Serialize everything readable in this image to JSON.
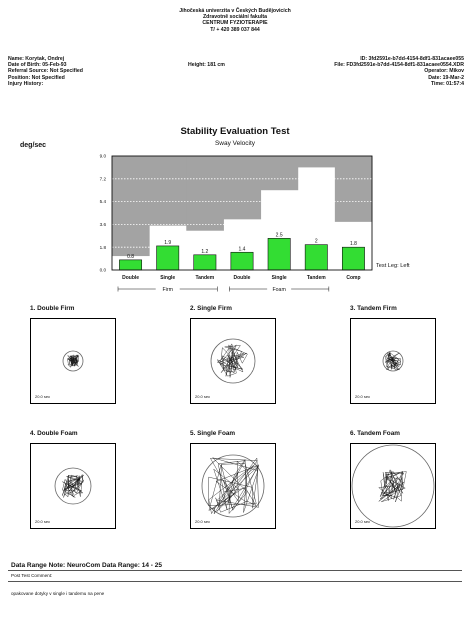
{
  "header": {
    "line1": "Jihočeská univerzita v Českých Budějovicích",
    "line2": "Zdravotně sociální fakulta",
    "line3": "CENTRUM FYZIOTERAPIE",
    "line4": "T/ + 420 389 037 844"
  },
  "patient": {
    "name": "Name: Korytak, Ondrej",
    "dob": "Date of Birth: 05-Feb-93",
    "referral": "Referral Source: Not Specified",
    "position": "Position: Not Specified",
    "injury": "Injury History:",
    "height": "Height: 181 cm",
    "id": "ID: 3fd2591e-b7dd-4154-8df1-831acaee055",
    "file": "File: FD3fd2591e-b7dd-4154-8df1-831acaee0554.XDR",
    "operator": "Operator: Mikov",
    "date": "Date: 19-Mar-2",
    "time": "Time: 01:57:4"
  },
  "report": {
    "title": "Stability Evaluation Test",
    "unit_label": "deg/sec",
    "subtitle": "Sway Velocity"
  },
  "chart_data": {
    "type": "bar",
    "title": "Stability Evaluation Test",
    "subtitle": "Sway Velocity",
    "ylabel": "deg/sec",
    "ylim": [
      0,
      9
    ],
    "yticks": [
      "0.0",
      "1.8",
      "3.6",
      "5.4",
      "7.2",
      "9.0"
    ],
    "categories": [
      "Double",
      "Single",
      "Tandem",
      "Double",
      "Single",
      "Tandem",
      "Comp"
    ],
    "values": [
      0.8,
      1.9,
      1.2,
      1.4,
      2.5,
      2.0,
      1.8
    ],
    "value_labels": [
      "0.8",
      "1.9",
      "1.2",
      "1.4",
      "2.5",
      "2",
      "1.8"
    ],
    "normal_limits": [
      1.1,
      3.5,
      3.1,
      4.0,
      6.3,
      8.1,
      3.8
    ],
    "groups": [
      {
        "label": "Firm",
        "categories": [
          0,
          1,
          2
        ]
      },
      {
        "label": "Foam",
        "categories": [
          3,
          4,
          5
        ]
      }
    ],
    "legend": "Test Leg: Left",
    "colors": {
      "bar": "#33dd33",
      "normal_region": "#a3a3a3",
      "grid": "#ffffff"
    }
  },
  "tiles": [
    {
      "label": "1. Double Firm",
      "time": "20.0 sec"
    },
    {
      "label": "2. Single Firm",
      "time": "20.0 sec"
    },
    {
      "label": "3. Tandem Firm",
      "time": "20.0 sec"
    },
    {
      "label": "4. Double Foam",
      "time": "20.0 sec"
    },
    {
      "label": "5. Single Foam",
      "time": "20.0 sec"
    },
    {
      "label": "6. Tandem Foam",
      "time": "20.0 sec"
    }
  ],
  "footer": {
    "data_range_note": "Data Range Note:   NeuroCom Data Range: 14 - 25",
    "post_test_label": "Post Test Comment:",
    "comment": "opakovane dotyky v single i tandemu na pene"
  }
}
